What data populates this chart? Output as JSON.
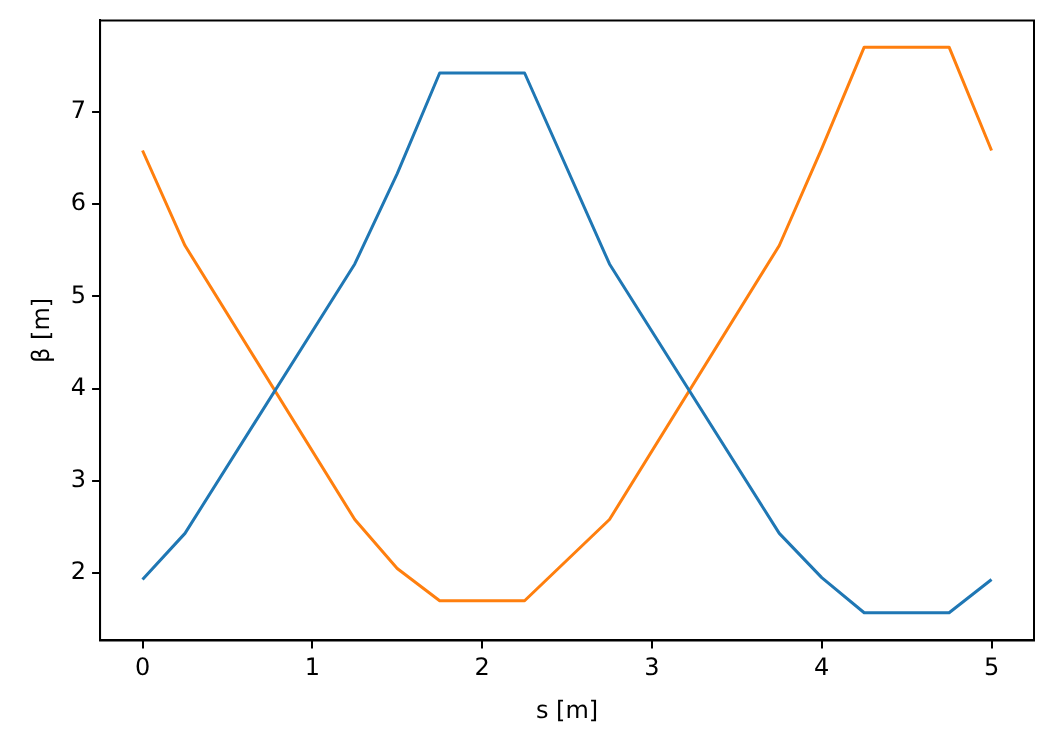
{
  "chart_data": {
    "type": "line",
    "xlabel": "s [m]",
    "ylabel": "β [m]",
    "x": [
      0,
      0.25,
      1.25,
      1.5,
      1.75,
      2.25,
      2.75,
      3.75,
      4,
      4.25,
      4.75,
      5
    ],
    "series": [
      {
        "color": "#1f77b4",
        "values": [
          1.93,
          2.43,
          5.35,
          6.33,
          7.42,
          7.42,
          5.35,
          2.43,
          1.95,
          1.57,
          1.57,
          1.93
        ]
      },
      {
        "color": "#ff7f0e",
        "values": [
          6.58,
          5.55,
          2.58,
          2.05,
          1.7,
          1.7,
          2.58,
          5.55,
          6.6,
          7.7,
          7.7,
          6.58
        ]
      }
    ],
    "xlim": [
      -0.25,
      5.25
    ],
    "xticks": [
      0,
      1,
      2,
      3,
      4,
      5
    ],
    "ylim": [
      1.27,
      7.99
    ],
    "yticks": [
      2,
      3,
      4,
      5,
      6,
      7
    ],
    "grid": false,
    "legend": false,
    "marker": "none",
    "line_style": "solid"
  }
}
